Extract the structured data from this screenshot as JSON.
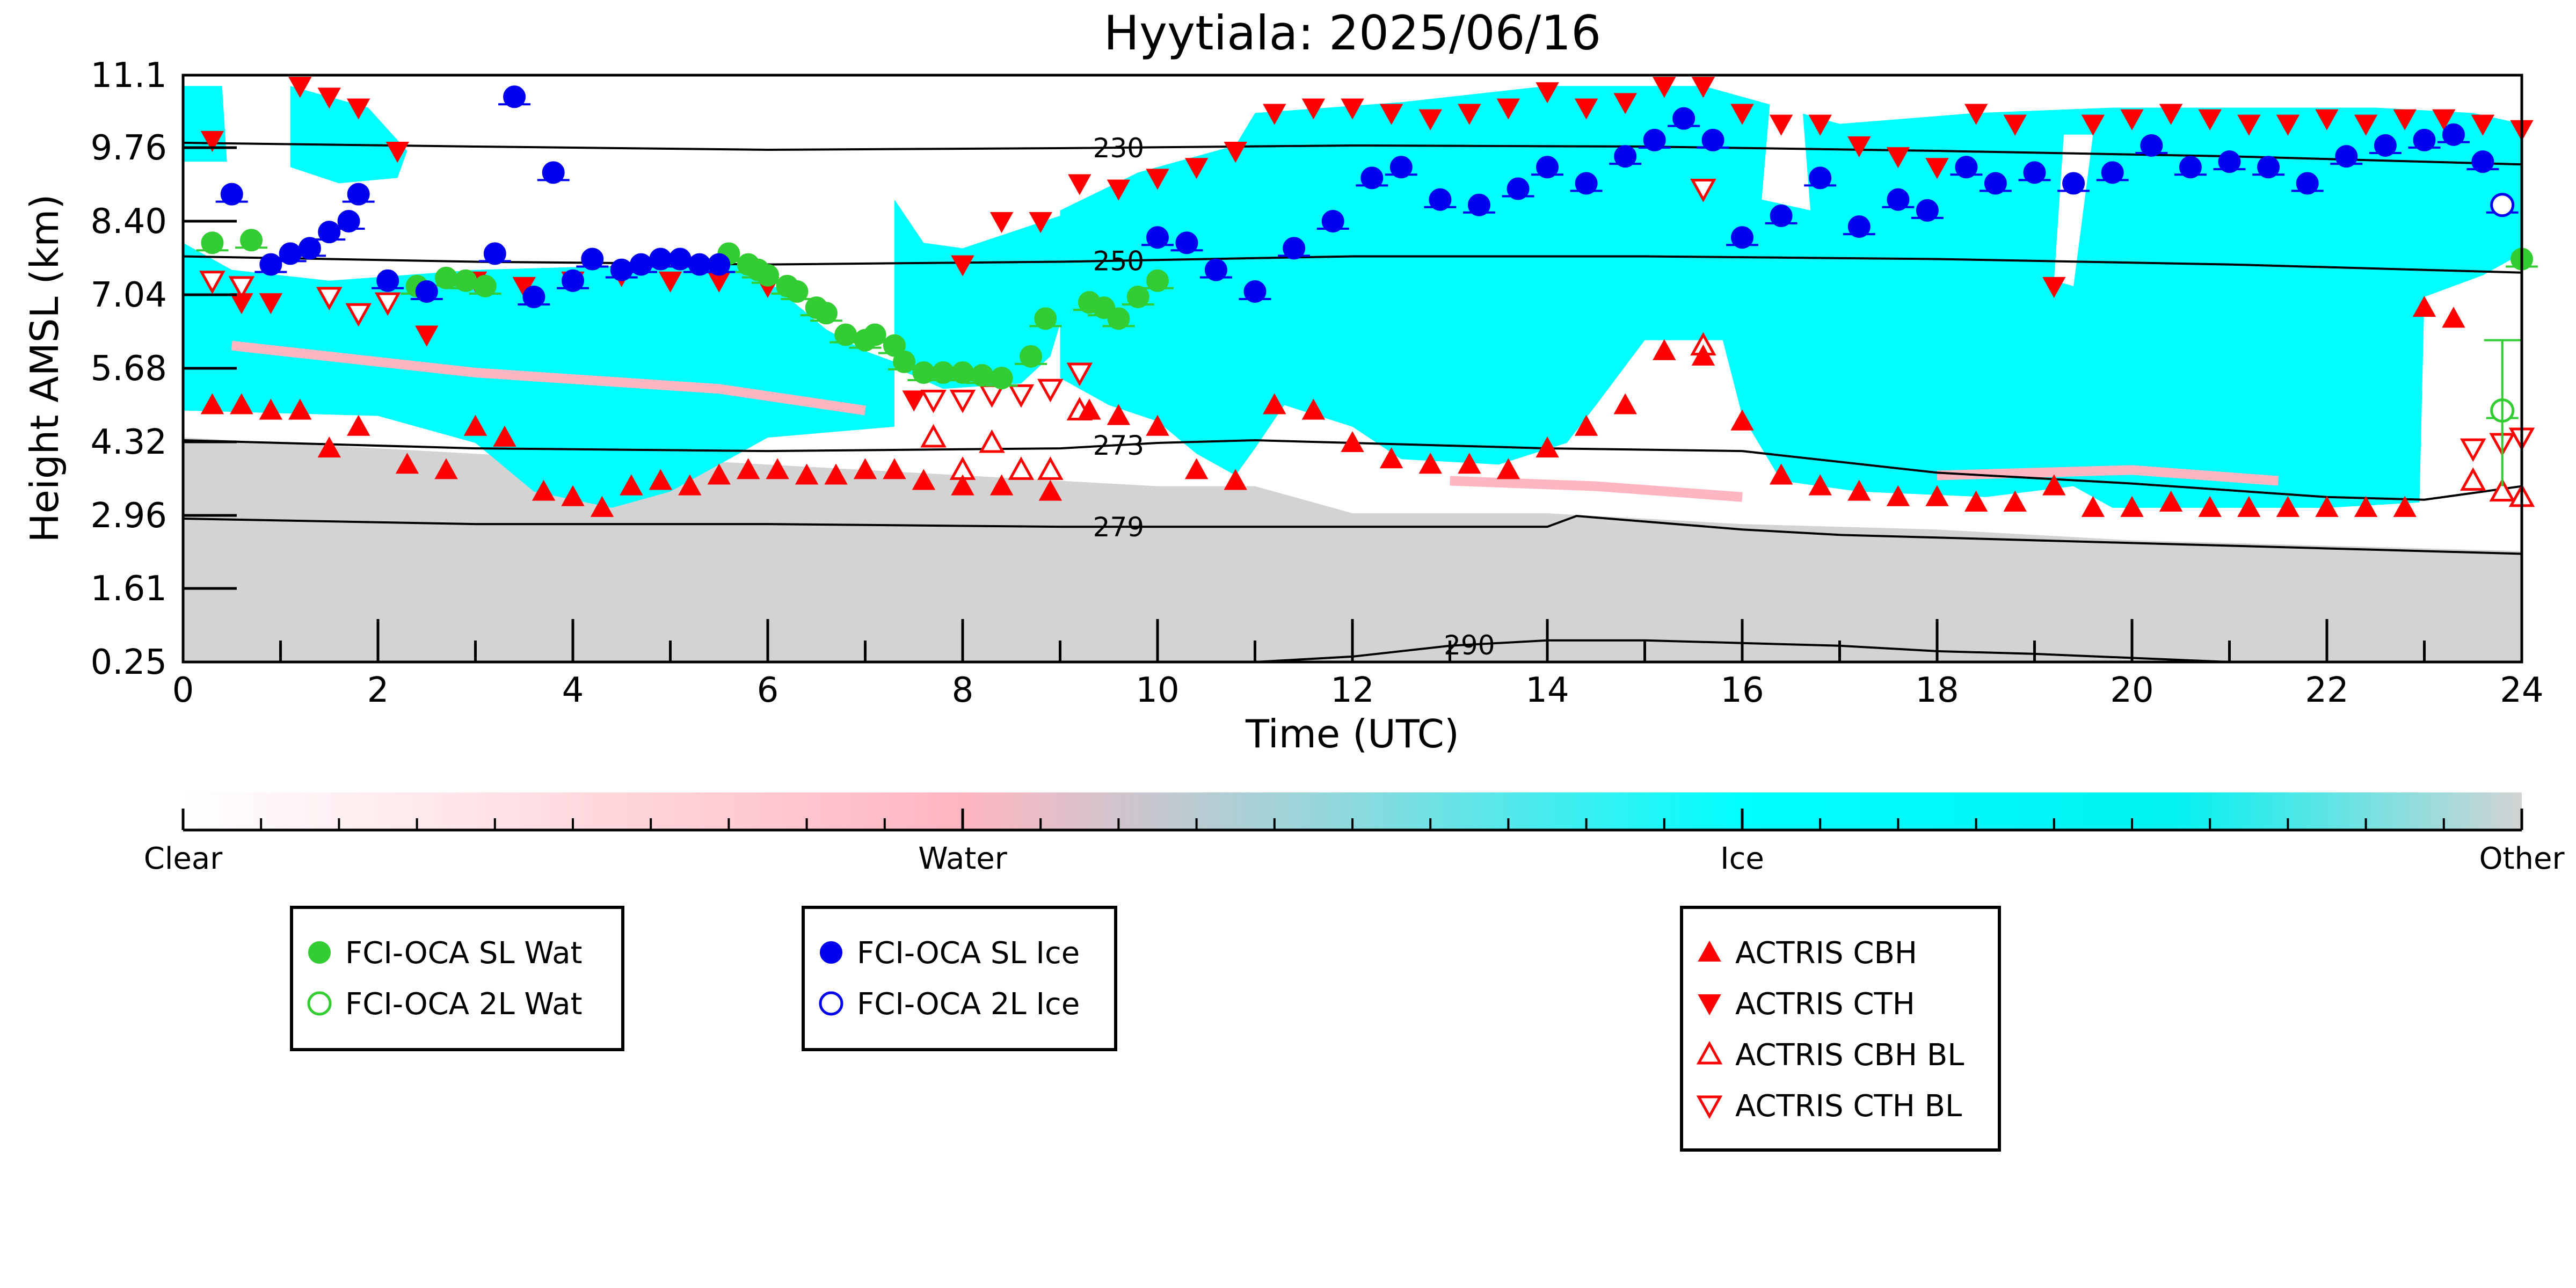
{
  "chart_data": {
    "type": "scatter",
    "title": "Hyytiala: 2025/06/16",
    "xlabel": "Time (UTC)",
    "ylabel": "Height AMSL (km)",
    "xlim": [
      0,
      24
    ],
    "ylim": [
      0.25,
      11.1
    ],
    "xticks": [
      "0",
      "2",
      "4",
      "6",
      "8",
      "10",
      "12",
      "14",
      "16",
      "18",
      "20",
      "22",
      "24"
    ],
    "yticks": [
      "0.25",
      "1.61",
      "2.96",
      "4.32",
      "5.68",
      "7.04",
      "8.40",
      "9.76",
      "11.1"
    ],
    "grid": false,
    "background": {
      "description_classes": [
        "Clear",
        "Water",
        "Ice",
        "Other"
      ],
      "colors": {
        "Clear": "#ffffff",
        "Water": "#ffb6c1",
        "Ice": "#00ffff",
        "Other": "#d3d3d3"
      }
    },
    "colorbar": {
      "labels": [
        "Clear",
        "Water",
        "Ice",
        "Other"
      ]
    },
    "contours": [
      {
        "label": "230",
        "x": [
          0,
          3,
          6,
          9,
          12,
          15,
          18,
          21,
          24
        ],
        "y": [
          9.85,
          9.78,
          9.72,
          9.75,
          9.8,
          9.78,
          9.7,
          9.6,
          9.45
        ]
      },
      {
        "label": "250",
        "x": [
          0,
          3,
          6,
          9,
          12,
          15,
          18,
          21,
          24
        ],
        "y": [
          7.75,
          7.65,
          7.6,
          7.65,
          7.75,
          7.75,
          7.7,
          7.6,
          7.45
        ]
      },
      {
        "label": "273",
        "x": [
          0,
          3,
          6,
          9,
          10,
          11,
          12,
          14,
          16,
          17,
          18,
          20,
          22,
          23,
          24
        ],
        "y": [
          4.35,
          4.2,
          4.15,
          4.2,
          4.3,
          4.35,
          4.3,
          4.2,
          4.15,
          3.95,
          3.75,
          3.55,
          3.3,
          3.25,
          3.5
        ]
      },
      {
        "label": "279",
        "x": [
          0,
          3,
          6,
          9,
          12,
          14,
          14.3,
          16,
          17,
          18,
          20,
          22,
          24
        ],
        "y": [
          2.9,
          2.8,
          2.8,
          2.75,
          2.75,
          2.75,
          2.95,
          2.7,
          2.6,
          2.55,
          2.45,
          2.35,
          2.25
        ]
      },
      {
        "label": "290",
        "x": [
          11,
          12,
          13,
          14,
          15,
          16,
          17,
          18,
          19,
          21
        ],
        "y": [
          0.25,
          0.35,
          0.55,
          0.65,
          0.65,
          0.6,
          0.55,
          0.45,
          0.4,
          0.25
        ]
      }
    ],
    "series": [
      {
        "name": "FCI-OCA SL Wat",
        "color": "#33cc33",
        "marker": "filled-circle",
        "x": [
          0.3,
          0.7,
          2.4,
          2.7,
          2.9,
          3.1,
          5.6,
          5.8,
          5.9,
          6.0,
          6.2,
          6.3,
          6.5,
          6.6,
          6.8,
          7.0,
          7.1,
          7.3,
          7.4,
          7.6,
          7.8,
          8.0,
          8.2,
          8.4,
          8.7,
          8.85,
          9.3,
          9.45,
          9.6,
          9.8,
          10.0,
          24.0
        ],
        "y": [
          8.0,
          8.05,
          7.2,
          7.35,
          7.3,
          7.2,
          7.8,
          7.6,
          7.5,
          7.4,
          7.2,
          7.1,
          6.8,
          6.7,
          6.3,
          6.2,
          6.3,
          6.1,
          5.8,
          5.6,
          5.6,
          5.6,
          5.55,
          5.5,
          5.9,
          6.6,
          6.9,
          6.8,
          6.6,
          7.0,
          7.3,
          7.7
        ]
      },
      {
        "name": "FCI-OCA 2L Wat",
        "color": "#33cc33",
        "marker": "open-circle",
        "x": [
          23.8
        ],
        "y": [
          4.9
        ]
      },
      {
        "name": "FCI-OCA SL Ice",
        "color": "#0000ee",
        "marker": "filled-circle",
        "x": [
          0.5,
          0.9,
          1.1,
          1.3,
          1.5,
          1.7,
          1.8,
          2.1,
          2.5,
          3.2,
          3.4,
          3.6,
          3.8,
          4.0,
          4.2,
          4.5,
          4.7,
          4.9,
          5.1,
          5.3,
          5.5,
          10.0,
          10.3,
          10.6,
          11.0,
          11.4,
          11.8,
          12.2,
          12.5,
          12.9,
          13.3,
          13.7,
          14.0,
          14.4,
          14.8,
          15.1,
          15.4,
          15.7,
          16.0,
          16.4,
          16.8,
          17.2,
          17.6,
          17.9,
          18.3,
          18.6,
          19.0,
          19.4,
          19.8,
          20.2,
          20.6,
          21.0,
          21.4,
          21.8,
          22.2,
          22.6,
          23.0,
          23.3,
          23.6
        ],
        "y": [
          8.9,
          7.6,
          7.8,
          7.9,
          8.2,
          8.4,
          8.9,
          7.3,
          7.1,
          7.8,
          10.7,
          7.0,
          9.3,
          7.3,
          7.7,
          7.5,
          7.6,
          7.7,
          7.7,
          7.6,
          7.6,
          8.1,
          8.0,
          7.5,
          7.1,
          7.9,
          8.4,
          9.2,
          9.4,
          8.8,
          8.7,
          9.0,
          9.4,
          9.1,
          9.6,
          9.9,
          10.3,
          9.9,
          8.1,
          8.5,
          9.2,
          8.3,
          8.8,
          8.6,
          9.4,
          9.1,
          9.3,
          9.1,
          9.3,
          9.8,
          9.4,
          9.5,
          9.4,
          9.1,
          9.6,
          9.8,
          9.9,
          10.0,
          9.5
        ]
      },
      {
        "name": "FCI-OCA 2L Ice",
        "color": "#0000ee",
        "marker": "open-circle",
        "x": [
          23.8
        ],
        "y": [
          8.7
        ]
      },
      {
        "name": "ACTRIS CBH",
        "color": "#ff0000",
        "marker": "filled-triangle-up",
        "x": [
          0.3,
          0.6,
          0.9,
          1.2,
          1.5,
          1.8,
          2.3,
          2.7,
          3.0,
          3.3,
          3.7,
          4.0,
          4.3,
          4.6,
          4.9,
          5.2,
          5.5,
          5.8,
          6.1,
          6.4,
          6.7,
          7.0,
          7.3,
          7.6,
          8.0,
          8.4,
          8.9,
          9.3,
          9.6,
          10.0,
          10.4,
          10.8,
          11.2,
          11.6,
          12.0,
          12.4,
          12.8,
          13.2,
          13.6,
          14.0,
          14.4,
          14.8,
          15.2,
          15.6,
          16.0,
          16.4,
          16.8,
          17.2,
          17.6,
          18.0,
          18.4,
          18.8,
          19.2,
          19.6,
          20.0,
          20.4,
          20.8,
          21.2,
          21.6,
          22.0,
          22.4,
          22.8,
          23.0,
          23.3
        ],
        "y": [
          5.0,
          5.0,
          4.9,
          4.9,
          4.2,
          4.6,
          3.9,
          3.8,
          4.6,
          4.4,
          3.4,
          3.3,
          3.1,
          3.5,
          3.6,
          3.5,
          3.7,
          3.8,
          3.8,
          3.7,
          3.7,
          3.8,
          3.8,
          3.6,
          3.5,
          3.5,
          3.4,
          4.9,
          4.8,
          4.6,
          3.8,
          3.6,
          5.0,
          4.9,
          4.3,
          4.0,
          3.9,
          3.9,
          3.8,
          4.2,
          4.6,
          5.0,
          6.0,
          5.9,
          4.7,
          3.7,
          3.5,
          3.4,
          3.3,
          3.3,
          3.2,
          3.2,
          3.5,
          3.1,
          3.1,
          3.2,
          3.1,
          3.1,
          3.1,
          3.1,
          3.1,
          3.1,
          6.8,
          6.6
        ]
      },
      {
        "name": "ACTRIS CTH",
        "color": "#ff0000",
        "marker": "filled-triangle-down",
        "x": [
          0.3,
          0.6,
          0.9,
          1.2,
          1.5,
          1.8,
          2.2,
          2.5,
          3.0,
          3.5,
          4.0,
          4.5,
          5.0,
          5.5,
          6.0,
          7.5,
          8.0,
          8.4,
          8.8,
          9.2,
          9.6,
          10.0,
          10.4,
          10.8,
          11.2,
          11.6,
          12.0,
          12.4,
          12.8,
          13.2,
          13.6,
          14.0,
          14.4,
          14.8,
          15.2,
          15.6,
          16.0,
          16.4,
          16.8,
          17.2,
          17.6,
          18.0,
          18.4,
          18.8,
          19.2,
          19.6,
          20.0,
          20.4,
          20.8,
          21.2,
          21.6,
          22.0,
          22.4,
          22.8,
          23.2,
          23.6,
          24.0
        ],
        "y": [
          9.9,
          6.9,
          6.9,
          10.9,
          10.7,
          10.5,
          9.7,
          6.3,
          7.3,
          7.2,
          7.3,
          7.4,
          7.3,
          7.3,
          7.2,
          5.1,
          7.6,
          8.4,
          8.4,
          9.1,
          9.0,
          9.2,
          9.4,
          9.7,
          10.4,
          10.5,
          10.5,
          10.4,
          10.3,
          10.4,
          10.5,
          10.8,
          10.5,
          10.6,
          10.9,
          10.9,
          10.4,
          10.2,
          10.2,
          9.8,
          9.6,
          9.4,
          10.4,
          10.2,
          7.2,
          10.2,
          10.3,
          10.4,
          10.3,
          10.2,
          10.2,
          10.3,
          10.2,
          10.3,
          10.3,
          10.2,
          10.1
        ]
      },
      {
        "name": "ACTRIS CBH BL",
        "color": "#ff0000",
        "marker": "open-triangle-up",
        "x": [
          7.7,
          8.0,
          8.3,
          8.6,
          8.9,
          9.2,
          15.6,
          23.5,
          23.8,
          24.0
        ],
        "y": [
          4.4,
          3.8,
          4.3,
          3.8,
          3.8,
          4.9,
          6.1,
          3.6,
          3.4,
          3.3
        ]
      },
      {
        "name": "ACTRIS CTH BL",
        "color": "#ff0000",
        "marker": "open-triangle-down",
        "x": [
          0.3,
          0.6,
          1.5,
          1.8,
          2.1,
          7.7,
          8.0,
          8.3,
          8.6,
          8.9,
          9.2,
          15.6,
          23.5,
          23.8,
          24.0
        ],
        "y": [
          7.3,
          7.2,
          7.0,
          6.7,
          6.9,
          5.1,
          5.1,
          5.2,
          5.2,
          5.3,
          5.6,
          9.0,
          4.2,
          4.3,
          4.4
        ]
      }
    ],
    "legend_groups": [
      [
        "FCI-OCA SL Wat",
        "FCI-OCA 2L Wat"
      ],
      [
        "FCI-OCA SL Ice",
        "FCI-OCA 2L Ice"
      ],
      [
        "ACTRIS CBH",
        "ACTRIS CTH",
        "ACTRIS CBH BL",
        "ACTRIS CTH BL"
      ]
    ],
    "legend_placement": "bottom"
  }
}
